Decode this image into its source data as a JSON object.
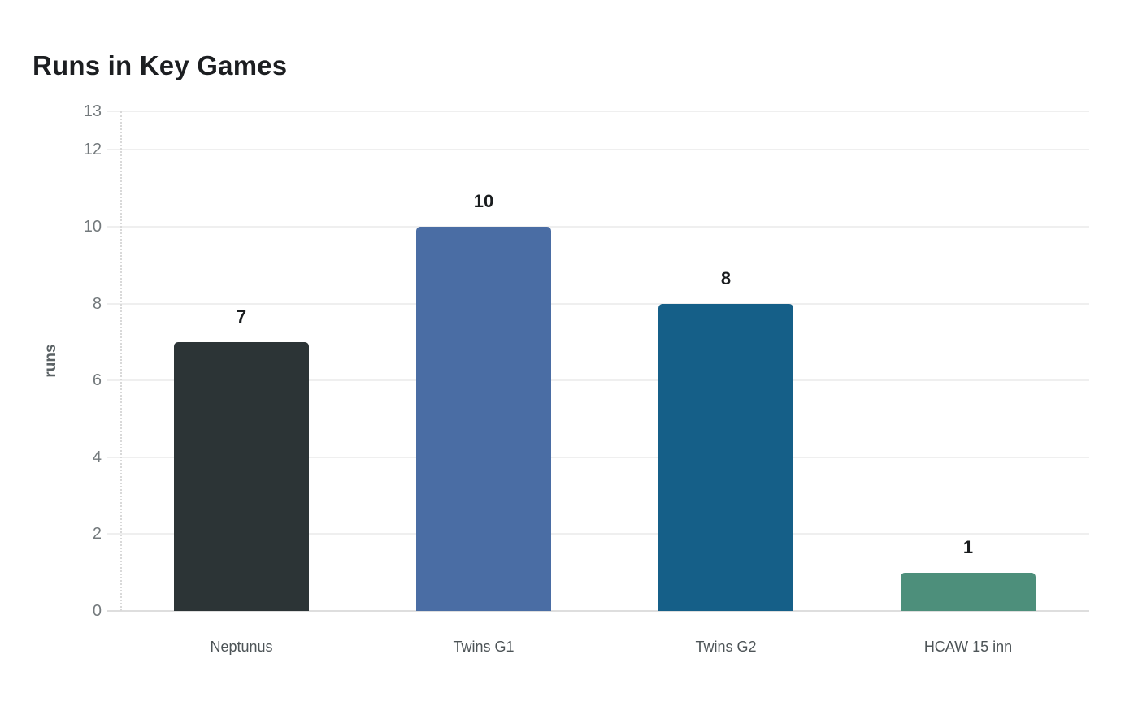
{
  "chart_data": {
    "type": "bar",
    "title": "Runs in Key Games",
    "xlabel": "",
    "ylabel": "runs",
    "categories": [
      "Neptunus",
      "Twins G1",
      "Twins G2",
      "HCAW 15 inn"
    ],
    "values": [
      7,
      10,
      8,
      1
    ],
    "value_labels": [
      "7",
      "10",
      "8",
      "1"
    ],
    "bar_colors": [
      "#2c3436",
      "#4a6da4",
      "#155f88",
      "#4d8f7b"
    ],
    "yticks": [
      0,
      2,
      4,
      6,
      8,
      10,
      12,
      13
    ],
    "ylim": [
      0,
      13
    ],
    "grid": "horizontal-only",
    "legend": "none",
    "y_axis_line_style": "dotted"
  }
}
